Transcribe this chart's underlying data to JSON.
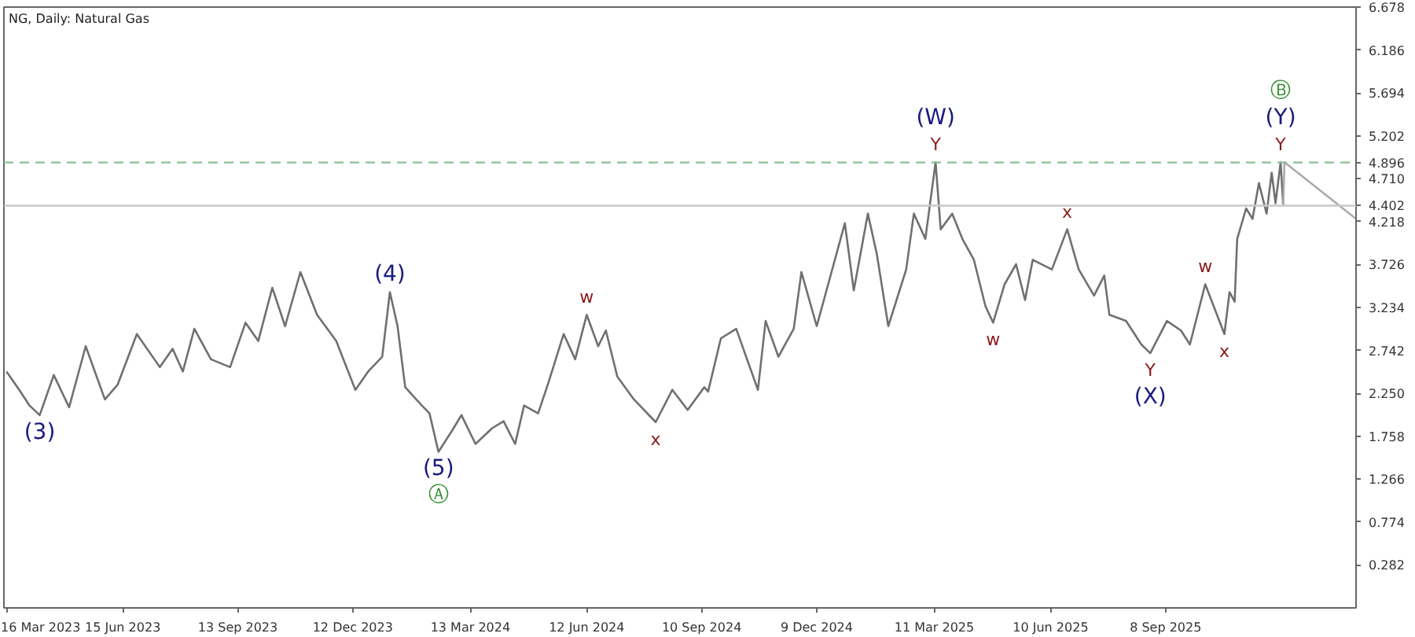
{
  "chart_data": {
    "type": "line",
    "title": "NG, Daily:  Natural Gas",
    "x": [
      "2023-03-16",
      "2023-03-26",
      "2023-04-03",
      "2023-04-11",
      "2023-04-22",
      "2023-05-04",
      "2023-05-17",
      "2023-06-01",
      "2023-06-11",
      "2023-06-26",
      "2023-07-14",
      "2023-07-24",
      "2023-08-01",
      "2023-08-10",
      "2023-08-23",
      "2023-09-07",
      "2023-09-19",
      "2023-09-29",
      "2023-10-10",
      "2023-10-20",
      "2023-11-01",
      "2023-11-14",
      "2023-11-29",
      "2023-12-14",
      "2023-12-24",
      "2024-01-04",
      "2024-01-10",
      "2024-01-16",
      "2024-01-20",
      "2024-01-22",
      "2024-02-04",
      "2024-02-10",
      "2024-02-17",
      "2024-02-28",
      "2024-03-06",
      "2024-03-17",
      "2024-03-30",
      "2024-04-08",
      "2024-04-17",
      "2024-04-24",
      "2024-05-05",
      "2024-05-13",
      "2024-05-25",
      "2024-06-03",
      "2024-06-12",
      "2024-06-21",
      "2024-06-27",
      "2024-07-06",
      "2024-07-19",
      "2024-08-05",
      "2024-08-18",
      "2024-08-30",
      "2024-09-12",
      "2024-09-15",
      "2024-09-25",
      "2024-10-07",
      "2024-10-24",
      "2024-10-30",
      "2024-11-09",
      "2024-11-21",
      "2024-11-27",
      "2024-12-09",
      "2024-12-31",
      "2025-01-07",
      "2025-01-18",
      "2025-01-25",
      "2025-02-03",
      "2025-02-17",
      "2025-02-23",
      "2025-03-04",
      "2025-03-12",
      "2025-03-16",
      "2025-03-25",
      "2025-04-02",
      "2025-04-11",
      "2025-04-20",
      "2025-04-26",
      "2025-05-05",
      "2025-05-14",
      "2025-05-21",
      "2025-05-27",
      "2025-06-11",
      "2025-06-23",
      "2025-07-02",
      "2025-07-14",
      "2025-07-22",
      "2025-07-26",
      "2025-08-08",
      "2025-08-20",
      "2025-08-27",
      "2025-09-09",
      "2025-09-20",
      "2025-09-27",
      "2025-10-09",
      "2025-10-24",
      "2025-10-28",
      "2025-11-01",
      "2025-11-03",
      "2025-11-10",
      "2025-11-15",
      "2025-11-20",
      "2025-11-26",
      "2025-11-30",
      "2025-12-03",
      "2025-12-07",
      "2025-12-09"
    ],
    "series": [
      {
        "color": "#707070",
        "values": [
          2.5,
          2.29,
          2.11,
          2.0,
          2.46,
          2.09,
          2.79,
          2.18,
          2.35,
          2.93,
          2.55,
          2.76,
          2.5,
          2.99,
          2.64,
          2.55,
          3.06,
          2.85,
          3.46,
          3.02,
          3.64,
          3.15,
          2.85,
          2.29,
          2.5,
          2.67,
          3.41,
          3.02,
          2.55,
          2.32,
          2.11,
          2.02,
          1.58,
          1.83,
          2.0,
          1.67,
          1.85,
          1.93,
          1.67,
          2.11,
          2.02,
          2.37,
          2.93,
          2.64,
          3.15,
          2.79,
          2.97,
          2.44,
          2.18,
          1.92,
          2.29,
          2.06,
          2.32,
          2.27,
          2.88,
          2.99,
          2.29,
          3.08,
          2.67,
          2.99,
          3.64,
          3.02,
          4.2,
          3.43,
          4.31,
          3.85,
          3.02,
          3.67,
          4.31,
          4.02,
          4.9,
          4.13,
          4.31,
          4.02,
          3.78,
          3.25,
          3.06,
          3.5,
          3.73,
          3.32,
          3.78,
          3.67,
          4.13,
          3.67,
          3.37,
          3.6,
          3.15,
          3.08,
          2.81,
          2.71,
          3.08,
          2.97,
          2.81,
          3.5,
          2.93,
          3.41,
          3.3,
          4.02,
          4.37,
          4.25,
          4.66,
          4.31,
          4.78,
          4.43,
          4.9,
          4.4
        ]
      },
      {
        "color": "#aaaaaa",
        "x": [
          "2025-12-09",
          "2025-12-10",
          "2026-02-04"
        ],
        "values": [
          4.4,
          4.9,
          4.25
        ]
      }
    ],
    "xlim": [
      "2023-03-14",
      "2026-02-04"
    ],
    "xticks": [
      {
        "value": "2023-03-16",
        "label": "16 Mar 2023"
      },
      {
        "value": "2023-06-15",
        "label": "15 Jun 2023"
      },
      {
        "value": "2023-09-13",
        "label": "13 Sep 2023"
      },
      {
        "value": "2023-12-12",
        "label": "12 Dec 2023"
      },
      {
        "value": "2024-03-13",
        "label": "13 Mar 2024"
      },
      {
        "value": "2024-06-12",
        "label": "12 Jun 2024"
      },
      {
        "value": "2024-09-10",
        "label": "10 Sep 2024"
      },
      {
        "value": "2024-12-09",
        "label": "9 Dec 2024"
      },
      {
        "value": "2025-03-11",
        "label": "11 Mar 2025"
      },
      {
        "value": "2025-06-10",
        "label": "10 Jun 2025"
      },
      {
        "value": "2025-09-08",
        "label": "8 Sep 2025"
      }
    ],
    "ylim": [
      -0.21,
      6.678
    ],
    "yticks": [
      0.282,
      0.774,
      1.266,
      1.758,
      {
        "value": 2.25,
        "label": "2.250"
      },
      2.742,
      3.234,
      3.726,
      4.218,
      {
        "value": 4.71,
        "label": "4.710"
      },
      5.202,
      5.694,
      6.186,
      6.678
    ],
    "ref_lines": [
      {
        "axis": "y",
        "value": 4.896,
        "label": "4.896",
        "color": "#8fbf8f",
        "line_style": "dashed"
      },
      {
        "axis": "y",
        "value": 4.402,
        "label": "4.402",
        "color": "#c8c8c8",
        "line_style": "solid"
      }
    ],
    "annotations": [
      {
        "text": "(3)",
        "x": "2023-04-11",
        "y": 2.0
      },
      {
        "text": "(4)",
        "x": "2024-01-10",
        "y": 3.41
      },
      {
        "text": "(5)",
        "x": "2024-02-17",
        "y": 1.58
      },
      {
        "text": "Ⓐ",
        "x": "2024-02-17",
        "y": 1.58
      },
      {
        "text": "w",
        "x": "2024-06-12",
        "y": 3.15
      },
      {
        "text": "x",
        "x": "2024-08-05",
        "y": 1.92
      },
      {
        "text": "Y",
        "x": "2025-03-12",
        "y": 4.9
      },
      {
        "text": "(W)",
        "x": "2025-03-12",
        "y": 4.9
      },
      {
        "text": "w",
        "x": "2025-04-26",
        "y": 3.06
      },
      {
        "text": "x",
        "x": "2025-06-23",
        "y": 4.13
      },
      {
        "text": "Y",
        "x": "2025-08-27",
        "y": 2.71
      },
      {
        "text": "(X)",
        "x": "2025-08-27",
        "y": 2.71
      },
      {
        "text": "w",
        "x": "2025-10-09",
        "y": 3.5
      },
      {
        "text": "x",
        "x": "2025-10-24",
        "y": 2.93
      },
      {
        "text": "Y",
        "x": "2025-12-07",
        "y": 4.9
      },
      {
        "text": "(Y)",
        "x": "2025-12-07",
        "y": 4.9
      },
      {
        "text": "Ⓑ",
        "x": "2025-12-07",
        "y": 4.9
      }
    ]
  }
}
